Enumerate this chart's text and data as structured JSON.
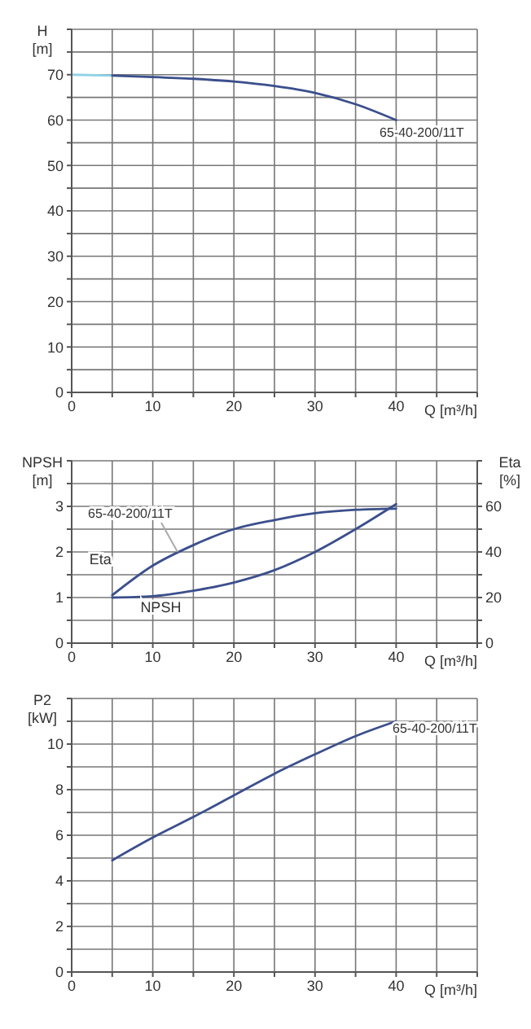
{
  "chart_data": [
    {
      "type": "line",
      "xlabel": "Q [m³/h]",
      "ylabel": "H [m]",
      "xlim": [
        0,
        50
      ],
      "xticks": [
        0,
        {
          "value": 5,
          "label": null
        },
        10,
        {
          "value": 15,
          "label": null
        },
        20,
        {
          "value": 25,
          "label": null
        },
        30,
        {
          "value": 35,
          "label": null
        },
        40,
        {
          "value": 45,
          "label": null
        },
        {
          "value": 50,
          "label": null
        }
      ],
      "ylim": [
        0,
        80
      ],
      "yticks": [
        0,
        {
          "value": 5,
          "label": null
        },
        10,
        {
          "value": 15,
          "label": null
        },
        20,
        {
          "value": 25,
          "label": null
        },
        30,
        {
          "value": 35,
          "label": null
        },
        40,
        {
          "value": 45,
          "label": null
        },
        50,
        {
          "value": 55,
          "label": null
        },
        60,
        {
          "value": 65,
          "label": null
        },
        70,
        {
          "value": 75,
          "label": null
        },
        {
          "value": 80,
          "label": null
        }
      ],
      "grid": true,
      "series": [
        {
          "color": "#8fd3e6",
          "x": [
            0,
            5
          ],
          "values": [
            70,
            69.8
          ]
        },
        {
          "color": "#3b4f8c",
          "x": [
            5,
            10,
            15,
            20,
            25,
            30,
            35,
            40
          ],
          "values": [
            69.8,
            69.5,
            69.1,
            68.5,
            67.5,
            66,
            63.5,
            60
          ]
        }
      ],
      "annotations": [
        "65-40-200/11T"
      ]
    },
    {
      "type": "line",
      "xlabel": "Q [m³/h]",
      "ylabel": "NPSH [m]",
      "y2label": "Eta [%]",
      "xlim": [
        0,
        50
      ],
      "xticks": [
        0,
        {
          "value": 5,
          "label": null
        },
        10,
        {
          "value": 15,
          "label": null
        },
        20,
        {
          "value": 25,
          "label": null
        },
        30,
        {
          "value": 35,
          "label": null
        },
        40,
        {
          "value": 45,
          "label": null
        },
        {
          "value": 50,
          "label": null
        }
      ],
      "ylim": [
        0,
        4
      ],
      "yticks": [
        0,
        {
          "value": 0.5,
          "label": null
        },
        1,
        {
          "value": 1.5,
          "label": null
        },
        2,
        {
          "value": 2.5,
          "label": null
        },
        3,
        {
          "value": 3.5,
          "label": null
        },
        {
          "value": 4,
          "label": null
        }
      ],
      "y2lim": [
        0,
        80
      ],
      "y2ticks": [
        0,
        {
          "value": 10,
          "label": null
        },
        20,
        {
          "value": 30,
          "label": null
        },
        40,
        {
          "value": 50,
          "label": null
        },
        60,
        {
          "value": 70,
          "label": null
        },
        {
          "value": 80,
          "label": null
        }
      ],
      "grid": true,
      "series": [
        {
          "name": "Eta",
          "color": "#3b4f8c",
          "axis": "y2",
          "x": [
            5,
            10,
            15,
            20,
            25,
            30,
            35,
            40
          ],
          "values": [
            21,
            34,
            43,
            50,
            54,
            57,
            58.5,
            59
          ]
        },
        {
          "name": "NPSH",
          "color": "#3b4f8c",
          "x": [
            5,
            10,
            15,
            20,
            25,
            30,
            35,
            40
          ],
          "values": [
            1,
            1.03,
            1.15,
            1.33,
            1.6,
            2,
            2.5,
            3.05
          ]
        }
      ],
      "annotations": [
        "65-40-200/11T"
      ]
    },
    {
      "type": "line",
      "xlabel": "Q [m³/h]",
      "ylabel": "P2 [kW]",
      "xlim": [
        0,
        50
      ],
      "xticks": [
        0,
        {
          "value": 5,
          "label": null
        },
        10,
        {
          "value": 15,
          "label": null
        },
        20,
        {
          "value": 25,
          "label": null
        },
        30,
        {
          "value": 35,
          "label": null
        },
        40,
        {
          "value": 45,
          "label": null
        },
        {
          "value": 50,
          "label": null
        }
      ],
      "ylim": [
        0,
        12
      ],
      "yticks": [
        0,
        {
          "value": 1,
          "label": null
        },
        2,
        {
          "value": 3,
          "label": null
        },
        4,
        {
          "value": 5,
          "label": null
        },
        6,
        {
          "value": 7,
          "label": null
        },
        8,
        {
          "value": 9,
          "label": null
        },
        10,
        {
          "value": 11,
          "label": null
        },
        {
          "value": 12,
          "label": null
        }
      ],
      "grid": true,
      "series": [
        {
          "color": "#3b4f8c",
          "x": [
            5,
            10,
            15,
            20,
            25,
            30,
            35,
            40
          ],
          "values": [
            4.9,
            5.9,
            6.8,
            7.75,
            8.7,
            9.55,
            10.35,
            11
          ]
        }
      ],
      "annotations": [
        "65-40-200/11T"
      ]
    }
  ]
}
